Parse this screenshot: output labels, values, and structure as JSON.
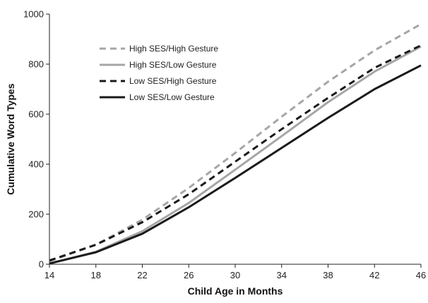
{
  "chart_data": {
    "type": "line",
    "title": "",
    "xlabel": "Child Age in Months",
    "ylabel": "Cumulative Word Types",
    "x": [
      14,
      18,
      22,
      26,
      30,
      34,
      38,
      42,
      46
    ],
    "xlim": [
      14,
      46
    ],
    "ylim": [
      0,
      1000
    ],
    "xticks": [
      "14",
      "18",
      "22",
      "26",
      "30",
      "34",
      "38",
      "42",
      "46"
    ],
    "yticks": [
      "0",
      "200",
      "400",
      "600",
      "800",
      "1000"
    ],
    "grid": false,
    "legend_position": "top-left",
    "series": [
      {
        "name": "High SES/High Gesture",
        "color": "#a6a6a6",
        "dash": "dashed",
        "values": [
          12,
          78,
          178,
          305,
          445,
          590,
          730,
          855,
          960
        ]
      },
      {
        "name": "High SES/Low Gesture",
        "color": "#a6a6a6",
        "dash": "solid",
        "values": [
          3,
          50,
          132,
          245,
          378,
          512,
          648,
          770,
          870
        ]
      },
      {
        "name": "Low SES/High Gesture",
        "color": "#1a1a1a",
        "dash": "dashed",
        "values": [
          15,
          78,
          168,
          280,
          410,
          540,
          665,
          785,
          875
        ]
      },
      {
        "name": "Low SES/Low Gesture",
        "color": "#1a1a1a",
        "dash": "solid",
        "values": [
          3,
          48,
          122,
          228,
          345,
          465,
          585,
          700,
          795
        ]
      }
    ]
  }
}
